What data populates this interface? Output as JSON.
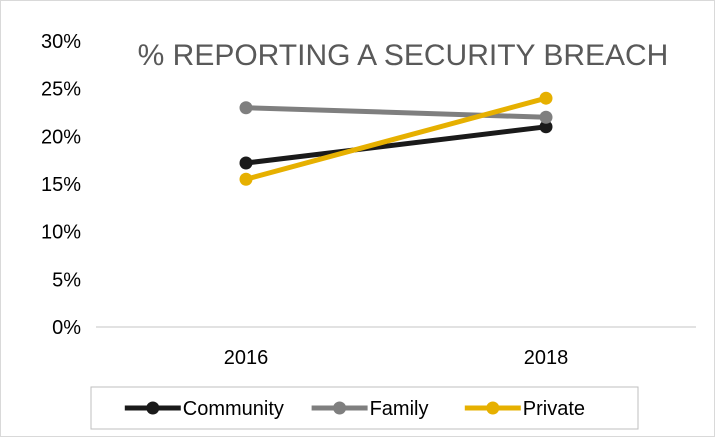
{
  "chart_data": {
    "type": "line",
    "title": "% REPORTING A SECURITY BREACH",
    "xlabel": "",
    "ylabel": "",
    "categories": [
      "2016",
      "2018"
    ],
    "ylim": [
      0,
      30
    ],
    "yticks": [
      "0%",
      "5%",
      "10%",
      "15%",
      "20%",
      "25%",
      "30%"
    ],
    "grid": false,
    "legend_position": "bottom",
    "series": [
      {
        "name": "Community",
        "color": "#1a1a1a",
        "values": [
          17.2,
          21.0
        ]
      },
      {
        "name": "Family",
        "color": "#7f7f7f",
        "values": [
          23.0,
          22.0
        ]
      },
      {
        "name": "Private",
        "color": "#e6b000",
        "values": [
          15.5,
          24.0
        ]
      }
    ]
  }
}
